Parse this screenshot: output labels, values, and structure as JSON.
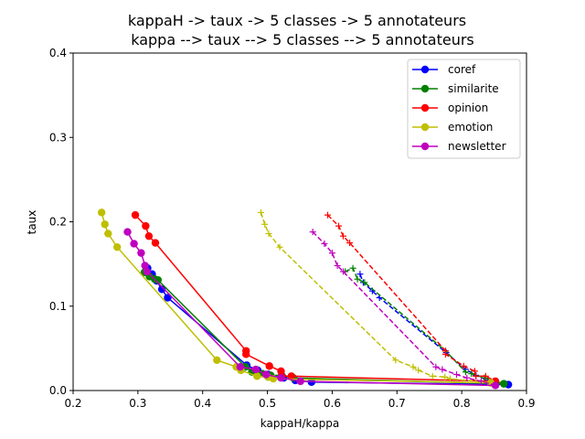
{
  "chart_data": {
    "type": "line",
    "title": [
      "kappaH -> taux -> 5 classes -> 5 annotateurs",
      "kappa --> taux --> 5 classes --> 5 annotateurs"
    ],
    "xlabel": "kappaH/kappa",
    "ylabel": "taux",
    "xlim": [
      0.2,
      0.9
    ],
    "ylim": [
      0.0,
      0.4
    ],
    "xticks": [
      0.2,
      0.3,
      0.4,
      0.5,
      0.6,
      0.7,
      0.8,
      0.9
    ],
    "yticks": [
      0.0,
      0.1,
      0.2,
      0.3,
      0.4
    ],
    "xtick_labels": [
      "0.2",
      "0.3",
      "0.4",
      "0.5",
      "0.6",
      "0.7",
      "0.8",
      "0.9"
    ],
    "ytick_labels": [
      "0.0",
      "0.1",
      "0.2",
      "0.3",
      "0.4"
    ],
    "grid": false,
    "legend_position": "top-right",
    "series": [
      {
        "name": "coref",
        "color": "#0000ff",
        "kappaH": [
          [
            0.315,
            0.145
          ],
          [
            0.322,
            0.138
          ],
          [
            0.329,
            0.13
          ],
          [
            0.337,
            0.12
          ],
          [
            0.346,
            0.11
          ],
          [
            0.468,
            0.03
          ],
          [
            0.485,
            0.024
          ],
          [
            0.501,
            0.019
          ],
          [
            0.525,
            0.015
          ],
          [
            0.543,
            0.012
          ],
          [
            0.568,
            0.01
          ],
          [
            0.872,
            0.007
          ]
        ],
        "kappa": [
          [
            0.643,
            0.138
          ],
          [
            0.648,
            0.128
          ],
          [
            0.662,
            0.118
          ],
          [
            0.673,
            0.11
          ],
          [
            0.776,
            0.045
          ],
          [
            0.806,
            0.025
          ],
          [
            0.822,
            0.018
          ],
          [
            0.84,
            0.012
          ],
          [
            0.855,
            0.009
          ],
          [
            0.872,
            0.007
          ]
        ]
      },
      {
        "name": "similarite",
        "color": "#008000",
        "kappaH": [
          [
            0.31,
            0.14
          ],
          [
            0.318,
            0.135
          ],
          [
            0.326,
            0.132
          ],
          [
            0.331,
            0.131
          ],
          [
            0.466,
            0.028
          ],
          [
            0.476,
            0.022
          ],
          [
            0.492,
            0.02
          ],
          [
            0.505,
            0.018
          ],
          [
            0.522,
            0.018
          ],
          [
            0.54,
            0.015
          ],
          [
            0.865,
            0.008
          ]
        ],
        "kappa": [
          [
            0.62,
            0.141
          ],
          [
            0.632,
            0.145
          ],
          [
            0.639,
            0.132
          ],
          [
            0.65,
            0.128
          ],
          [
            0.775,
            0.047
          ],
          [
            0.806,
            0.022
          ],
          [
            0.815,
            0.02
          ],
          [
            0.835,
            0.015
          ],
          [
            0.865,
            0.008
          ]
        ]
      },
      {
        "name": "opinion",
        "color": "#ff0000",
        "kappaH": [
          [
            0.296,
            0.208
          ],
          [
            0.312,
            0.195
          ],
          [
            0.317,
            0.183
          ],
          [
            0.327,
            0.175
          ],
          [
            0.467,
            0.047
          ],
          [
            0.467,
            0.043
          ],
          [
            0.503,
            0.029
          ],
          [
            0.521,
            0.023
          ],
          [
            0.522,
            0.017
          ],
          [
            0.537,
            0.017
          ],
          [
            0.852,
            0.011
          ]
        ],
        "kappa": [
          [
            0.593,
            0.208
          ],
          [
            0.61,
            0.195
          ],
          [
            0.617,
            0.183
          ],
          [
            0.627,
            0.175
          ],
          [
            0.775,
            0.047
          ],
          [
            0.775,
            0.043
          ],
          [
            0.803,
            0.029
          ],
          [
            0.82,
            0.023
          ],
          [
            0.822,
            0.017
          ],
          [
            0.837,
            0.017
          ],
          [
            0.852,
            0.011
          ]
        ]
      },
      {
        "name": "emotion",
        "color": "#bfbf00",
        "kappaH": [
          [
            0.244,
            0.211
          ],
          [
            0.249,
            0.197
          ],
          [
            0.254,
            0.186
          ],
          [
            0.268,
            0.17
          ],
          [
            0.422,
            0.036
          ],
          [
            0.452,
            0.028
          ],
          [
            0.459,
            0.024
          ],
          [
            0.484,
            0.017
          ],
          [
            0.501,
            0.016
          ],
          [
            0.509,
            0.014
          ],
          [
            0.845,
            0.009
          ]
        ],
        "kappa": [
          [
            0.49,
            0.211
          ],
          [
            0.496,
            0.197
          ],
          [
            0.502,
            0.186
          ],
          [
            0.519,
            0.17
          ],
          [
            0.698,
            0.036
          ],
          [
            0.725,
            0.028
          ],
          [
            0.733,
            0.024
          ],
          [
            0.755,
            0.017
          ],
          [
            0.774,
            0.016
          ],
          [
            0.782,
            0.014
          ],
          [
            0.845,
            0.009
          ]
        ]
      },
      {
        "name": "newsletter",
        "color": "#bf00bf",
        "kappaH": [
          [
            0.284,
            0.188
          ],
          [
            0.294,
            0.174
          ],
          [
            0.305,
            0.163
          ],
          [
            0.311,
            0.148
          ],
          [
            0.314,
            0.141
          ],
          [
            0.458,
            0.028
          ],
          [
            0.482,
            0.025
          ],
          [
            0.498,
            0.019
          ],
          [
            0.521,
            0.015
          ],
          [
            0.551,
            0.011
          ],
          [
            0.852,
            0.006
          ]
        ],
        "kappa": [
          [
            0.57,
            0.188
          ],
          [
            0.588,
            0.174
          ],
          [
            0.6,
            0.163
          ],
          [
            0.608,
            0.148
          ],
          [
            0.617,
            0.141
          ],
          [
            0.76,
            0.028
          ],
          [
            0.77,
            0.025
          ],
          [
            0.792,
            0.019
          ],
          [
            0.808,
            0.015
          ],
          [
            0.83,
            0.011
          ],
          [
            0.852,
            0.006
          ]
        ]
      }
    ]
  }
}
